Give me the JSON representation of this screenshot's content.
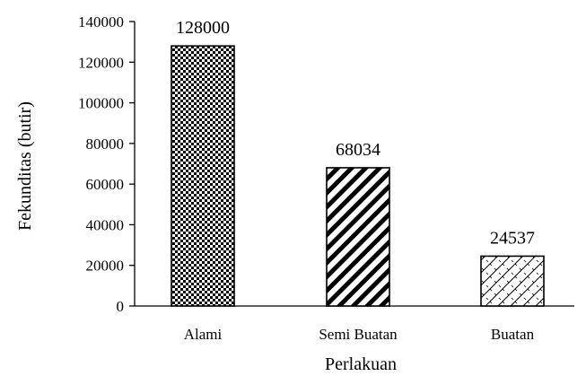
{
  "chart_data": {
    "type": "bar",
    "categories": [
      "Alami",
      "Semi Buatan",
      "Buatan"
    ],
    "values": [
      128000,
      68034,
      24537
    ],
    "data_labels": [
      "128000",
      "68034",
      "24537"
    ],
    "xlabel": "Perlakuan",
    "ylabel": "Fekunditas (butir)",
    "ylim": [
      0,
      140000
    ],
    "yticks": [
      0,
      20000,
      40000,
      60000,
      80000,
      100000,
      120000,
      140000
    ],
    "ytick_labels": [
      "0",
      "20000",
      "40000",
      "60000",
      "80000",
      "100000",
      "120000",
      "140000"
    ],
    "bar_patterns": [
      "checker",
      "diagonal-stripes",
      "crosshatch"
    ],
    "colors": {
      "bar_fill": "#ffffff",
      "pattern": "#000000",
      "axis": "#000000"
    },
    "grid": false,
    "legend": "none"
  }
}
